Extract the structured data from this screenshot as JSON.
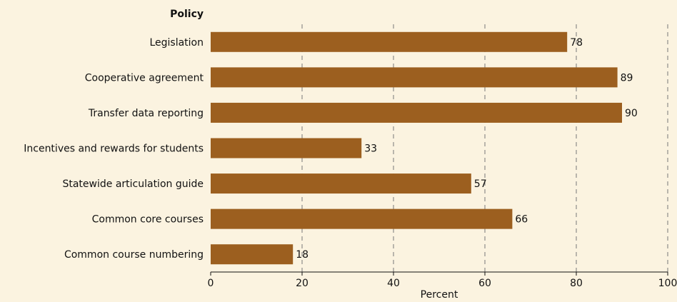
{
  "chart_data": {
    "type": "bar",
    "orientation": "horizontal",
    "categories": [
      "Legislation",
      "Cooperative agreement",
      "Transfer data reporting",
      "Incentives and rewards for students",
      "Statewide articulation guide",
      "Common core courses",
      "Common course numbering"
    ],
    "values": [
      78,
      89,
      90,
      33,
      57,
      66,
      18
    ],
    "ylabel": "Policy",
    "xlabel": "Percent",
    "xlim": [
      0,
      100
    ],
    "x_ticks": [
      0,
      20,
      40,
      60,
      80,
      100
    ],
    "grid": "vertical-dashed",
    "bar_color": "#9c5f1f",
    "background_color": "#fbf3e0"
  }
}
